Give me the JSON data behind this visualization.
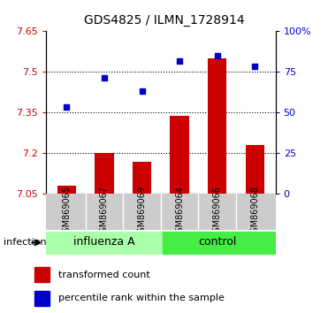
{
  "title": "GDS4825 / ILMN_1728914",
  "categories": [
    "GSM869065",
    "GSM869067",
    "GSM869069",
    "GSM869064",
    "GSM869066",
    "GSM869068"
  ],
  "bar_values": [
    7.08,
    7.2,
    7.17,
    7.34,
    7.55,
    7.23
  ],
  "scatter_values": [
    7.37,
    7.48,
    7.43,
    7.54,
    7.56,
    7.52
  ],
  "bar_color": "#cc0000",
  "scatter_color": "#0000cc",
  "ylim_left": [
    7.05,
    7.65
  ],
  "ylim_right": [
    0,
    100
  ],
  "yticks_left": [
    7.05,
    7.2,
    7.35,
    7.5,
    7.65
  ],
  "ytick_labels_left": [
    "7.05",
    "7.2",
    "7.35",
    "7.5",
    "7.65"
  ],
  "yticks_right": [
    0,
    25,
    50,
    75,
    100
  ],
  "ytick_labels_right": [
    "0",
    "25",
    "50",
    "75",
    "100%"
  ],
  "hlines": [
    7.2,
    7.35,
    7.5
  ],
  "group1_label": "influenza A",
  "group2_label": "control",
  "infection_label": "infection",
  "legend_bar_label": "transformed count",
  "legend_scatter_label": "percentile rank within the sample",
  "group1_color": "#aaffaa",
  "group2_color": "#44ee44",
  "tick_area_color": "#cccccc",
  "bar_bottom": 7.05
}
